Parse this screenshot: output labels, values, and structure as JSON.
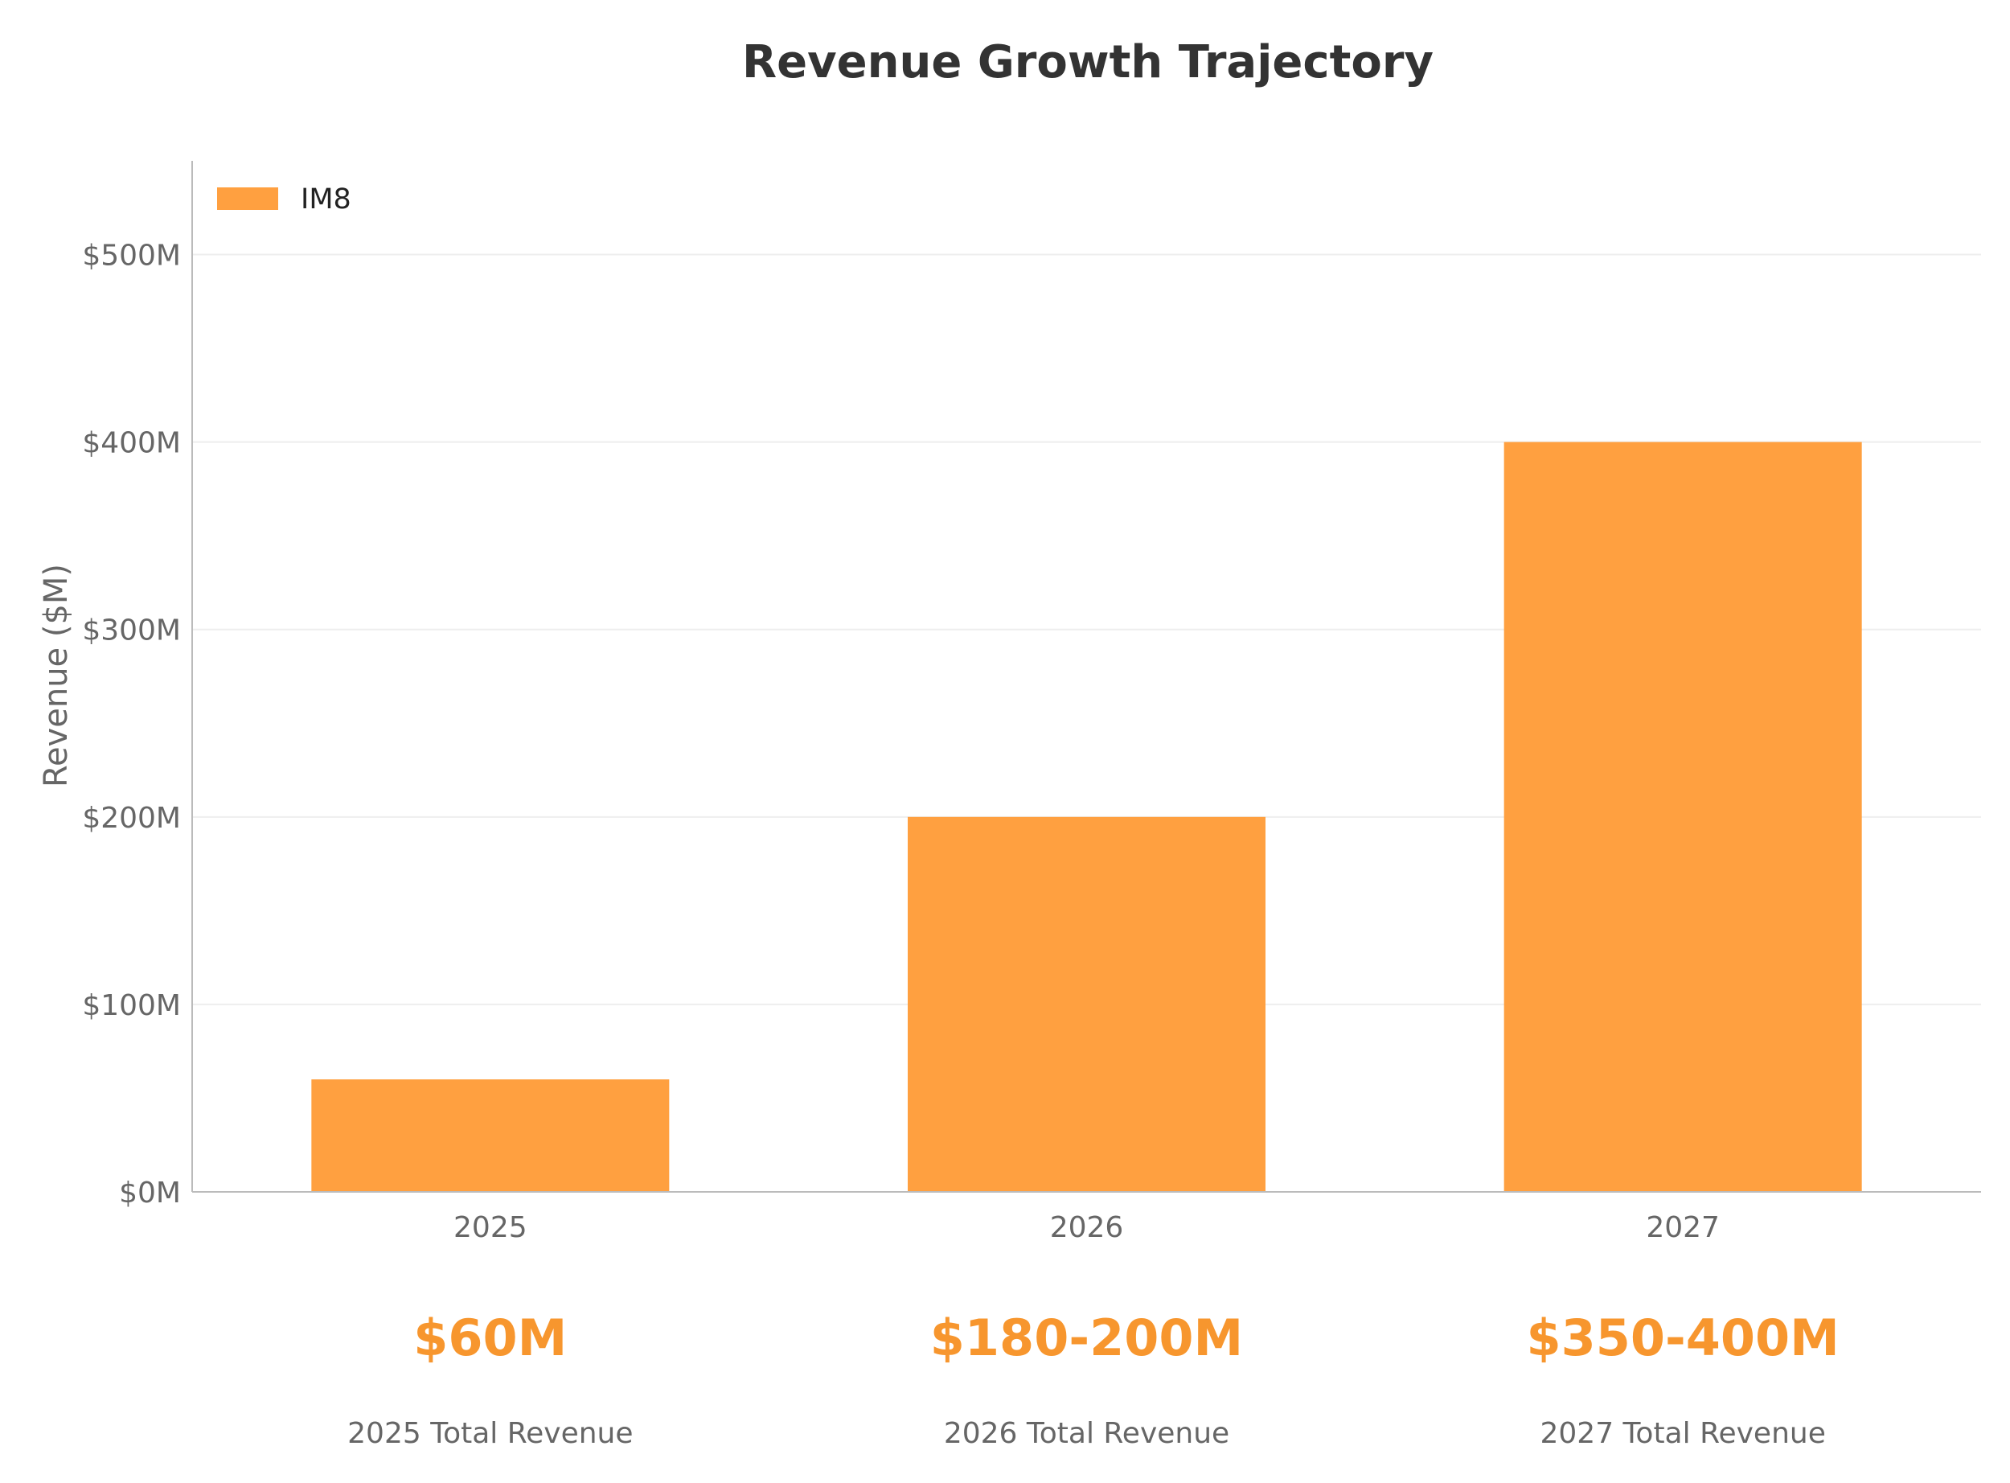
{
  "chart_data": {
    "type": "bar",
    "title": "Revenue Growth Trajectory",
    "xlabel": "",
    "ylabel": "Revenue ($M)",
    "categories": [
      "2025",
      "2026",
      "2027"
    ],
    "series": [
      {
        "name": "IM8",
        "values": [
          60,
          200,
          400
        ],
        "color": "#FFA040"
      }
    ],
    "ylim": [
      0,
      550
    ],
    "yticks": [
      0,
      100,
      200,
      300,
      400,
      500
    ],
    "ytick_labels": [
      "$0M",
      "$100M",
      "$200M",
      "$300M",
      "$400M",
      "$500M"
    ],
    "grid": true,
    "legend_position": "top-left",
    "summary": [
      {
        "value": "$60M",
        "caption": "2025 Total Revenue"
      },
      {
        "value": "$180-200M",
        "caption": "2026 Total Revenue"
      },
      {
        "value": "$350-400M",
        "caption": "2027 Total Revenue"
      }
    ],
    "colors": {
      "accent": "#FFA040",
      "summary_text": "#F7962E",
      "grid": "#EEEEEE",
      "axis": "#BBBBBB"
    }
  }
}
